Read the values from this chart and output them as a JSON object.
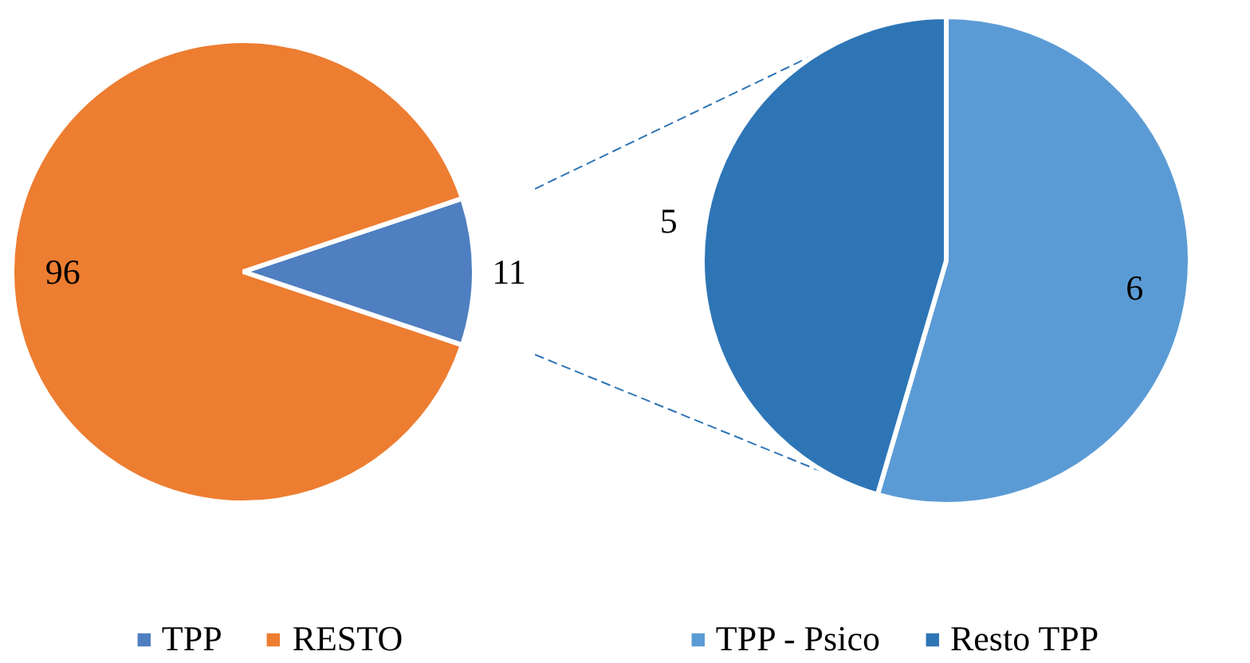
{
  "chart_data": [
    {
      "type": "pie",
      "categories": [
        "TPP",
        "RESTO"
      ],
      "values": [
        11,
        96
      ],
      "colors": [
        "#4f7fc0",
        "#ed7d31"
      ],
      "data_labels": true,
      "legend": "bottom"
    },
    {
      "type": "pie",
      "categories": [
        "TPP - Psico",
        "Resto TPP"
      ],
      "values": [
        6,
        5
      ],
      "colors": [
        "#5b9bd5",
        "#2e75b6"
      ],
      "data_labels": true,
      "legend": "bottom"
    }
  ]
}
